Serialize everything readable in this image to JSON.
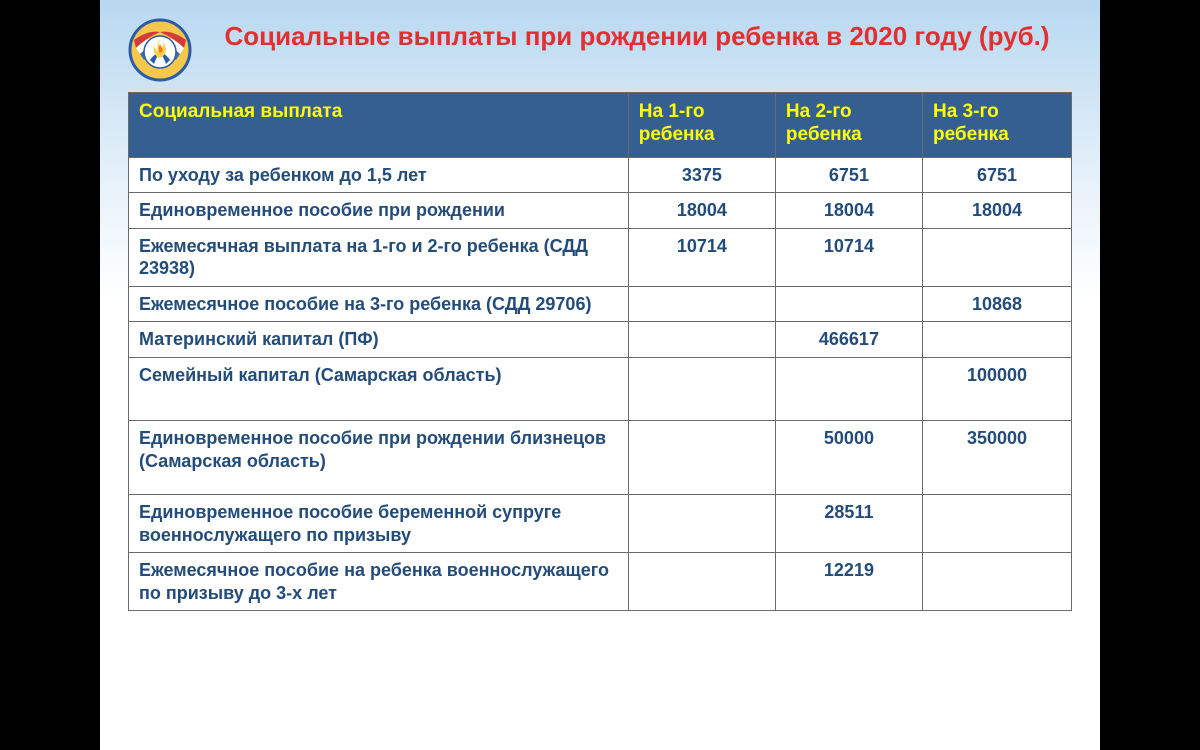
{
  "title": "Социальные выплаты при рождении ребенка в 2020 году  (руб.)",
  "colors": {
    "title": "#e03030",
    "header_bg": "#365f91",
    "header_text": "#ffff00",
    "cell_text": "#244c7a",
    "cell_bg": "#ffffff",
    "border": "#6b6b6b",
    "slide_bg_top": "#b8d8f0",
    "slide_bg_bottom": "#ffffff",
    "frame_bg": "#000000"
  },
  "font": {
    "family": "Arial",
    "title_size_pt": 20,
    "header_size_pt": 14,
    "cell_size_pt": 13,
    "weight": "bold"
  },
  "table": {
    "type": "table",
    "column_widths_pct": [
      53,
      15.6,
      15.6,
      15.8
    ],
    "columns": [
      "Социальная выплата",
      "На 1-го ребенка",
      "На 2-го ребенка",
      "На 3-го ребенка"
    ],
    "rows": [
      {
        "label": "По уходу за ребенком до 1,5 лет",
        "c1": "3375",
        "c2": "6751",
        "c3": "6751",
        "pad": ""
      },
      {
        "label": "Единовременное пособие при рождении",
        "c1": "18004",
        "c2": "18004",
        "c3": "18004",
        "pad": ""
      },
      {
        "label": "Ежемесячная выплата на 1-го и 2-го ребенка (СДД  23938)",
        "c1": "10714",
        "c2": "10714",
        "c3": "",
        "pad": ""
      },
      {
        "label": "Ежемесячное пособие на 3-го ребенка (СДД 29706)",
        "c1": "",
        "c2": "",
        "c3": "10868",
        "pad": ""
      },
      {
        "label": "Материнский капитал (ПФ)",
        "c1": "",
        "c2": "466617",
        "c3": "",
        "pad": ""
      },
      {
        "label": "Семейный капитал (Самарская область)",
        "c1": "",
        "c2": "",
        "c3": "100000",
        "pad": "tall"
      },
      {
        "label": "Единовременное пособие при рождении близнецов (Самарская область)",
        "c1": "",
        "c2": "50000",
        "c3": "350000",
        "pad": "med"
      },
      {
        "label": "Единовременное пособие беременной супруге военнослужащего по призыву",
        "c1": "",
        "c2": "28511",
        "c3": "",
        "pad": ""
      },
      {
        "label": "Ежемесячное пособие на ребенка военнослужащего по призыву до 3-х лет",
        "c1": "",
        "c2": "12219",
        "c3": "",
        "pad": ""
      }
    ]
  },
  "logo": {
    "outer_stroke": "#2a5ca8",
    "ring_fill": "#f5c74a",
    "flag_colors": [
      "#d43a3a",
      "#ffffff",
      "#3b6fb8"
    ],
    "flame_body": "#ffd24a",
    "flame_core": "#ff7a00",
    "hands": "#2a5ca8"
  }
}
